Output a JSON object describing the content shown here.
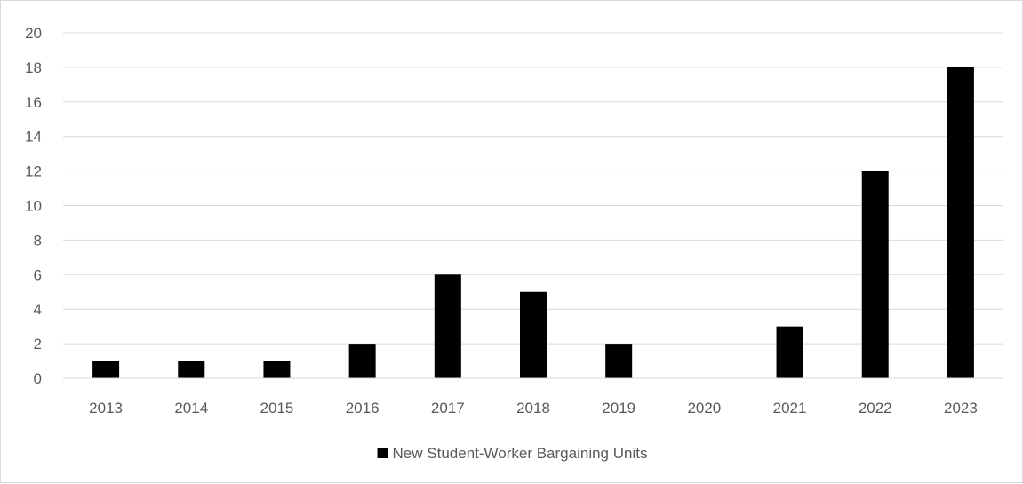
{
  "chart_data": {
    "type": "bar",
    "categories": [
      "2013",
      "2014",
      "2015",
      "2016",
      "2017",
      "2018",
      "2019",
      "2020",
      "2021",
      "2022",
      "2023"
    ],
    "series": [
      {
        "name": "New Student-Worker Bargaining Units",
        "values": [
          1,
          1,
          1,
          2,
          6,
          5,
          2,
          0,
          3,
          12,
          18
        ],
        "color": "#000000"
      }
    ],
    "ylim": [
      0,
      20
    ],
    "yticks": [
      0,
      2,
      4,
      6,
      8,
      10,
      12,
      14,
      16,
      18,
      20
    ],
    "grid": true,
    "legend_position": "bottom",
    "title": "",
    "xlabel": "",
    "ylabel": ""
  },
  "colors": {
    "gridline": "#d9d9d9",
    "axis": "#d9d9d9",
    "text": "#595959",
    "bar": "#000000"
  }
}
